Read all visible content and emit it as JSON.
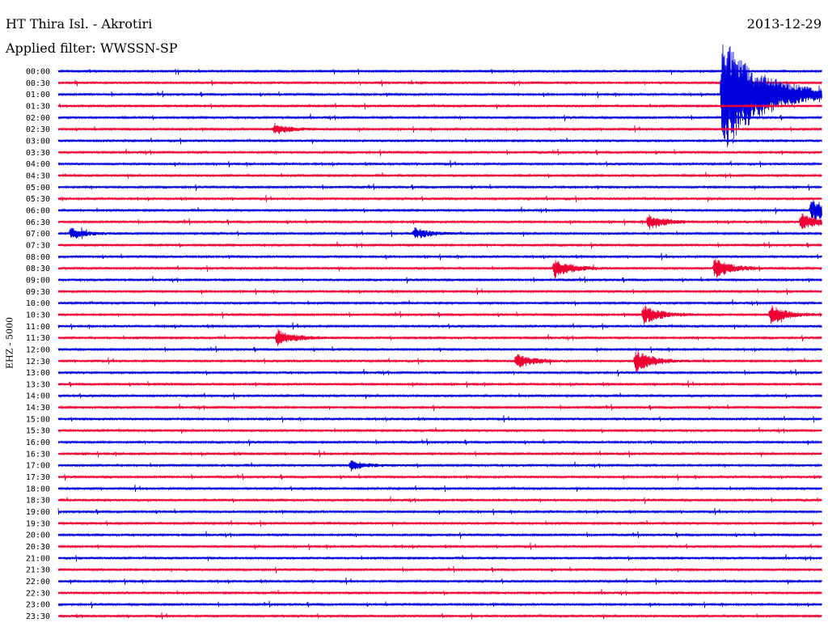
{
  "header": {
    "station": "HT Thira Isl. - Akrotiri",
    "date": "2013-12-29",
    "filter": "Applied filter: WWSSN-SP"
  },
  "channel_label": "EHZ - 5000",
  "colors": {
    "trace_a": "#0000dd",
    "trace_b": "#ee0033",
    "background": "#ffffff",
    "text": "#000000"
  },
  "chart_data": {
    "type": "line",
    "row_labels": [
      "00:00",
      "00:30",
      "01:00",
      "01:30",
      "02:00",
      "02:30",
      "03:00",
      "03:30",
      "04:00",
      "04:30",
      "05:00",
      "05:30",
      "06:00",
      "06:30",
      "07:00",
      "07:30",
      "08:00",
      "08:30",
      "09:00",
      "09:30",
      "10:00",
      "10:30",
      "11:00",
      "11:30",
      "12:00",
      "12:30",
      "13:00",
      "13:30",
      "14:00",
      "14:30",
      "15:00",
      "15:30",
      "16:00",
      "16:30",
      "17:00",
      "17:30",
      "18:00",
      "18:30",
      "19:00",
      "19:30",
      "20:00",
      "20:30",
      "21:00",
      "21:30",
      "22:00",
      "22:30",
      "23:00",
      "23:30"
    ],
    "row_colors": [
      "blue",
      "red"
    ],
    "x_unit": "minutes into 30-minute row",
    "xlim": [
      0,
      30
    ],
    "events": [
      {
        "row": "01:00",
        "minute": 26.1,
        "amplitude": 3.0
      },
      {
        "row": "02:30",
        "minute": 8.5,
        "amplitude": 0.3
      },
      {
        "row": "06:00",
        "minute": 29.6,
        "amplitude": 0.6
      },
      {
        "row": "06:30",
        "minute": 23.2,
        "amplitude": 0.4
      },
      {
        "row": "06:30",
        "minute": 29.2,
        "amplitude": 0.45
      },
      {
        "row": "07:00",
        "minute": 0.5,
        "amplitude": 0.3
      },
      {
        "row": "07:00",
        "minute": 14.0,
        "amplitude": 0.3
      },
      {
        "row": "08:30",
        "minute": 19.5,
        "amplitude": 0.5
      },
      {
        "row": "08:30",
        "minute": 25.8,
        "amplitude": 0.5
      },
      {
        "row": "10:30",
        "minute": 23.0,
        "amplitude": 0.5
      },
      {
        "row": "10:30",
        "minute": 28.0,
        "amplitude": 0.5
      },
      {
        "row": "11:30",
        "minute": 8.6,
        "amplitude": 0.45
      },
      {
        "row": "12:30",
        "minute": 18.0,
        "amplitude": 0.4
      },
      {
        "row": "12:30",
        "minute": 22.7,
        "amplitude": 0.55
      },
      {
        "row": "17:00",
        "minute": 11.5,
        "amplitude": 0.25
      }
    ]
  }
}
